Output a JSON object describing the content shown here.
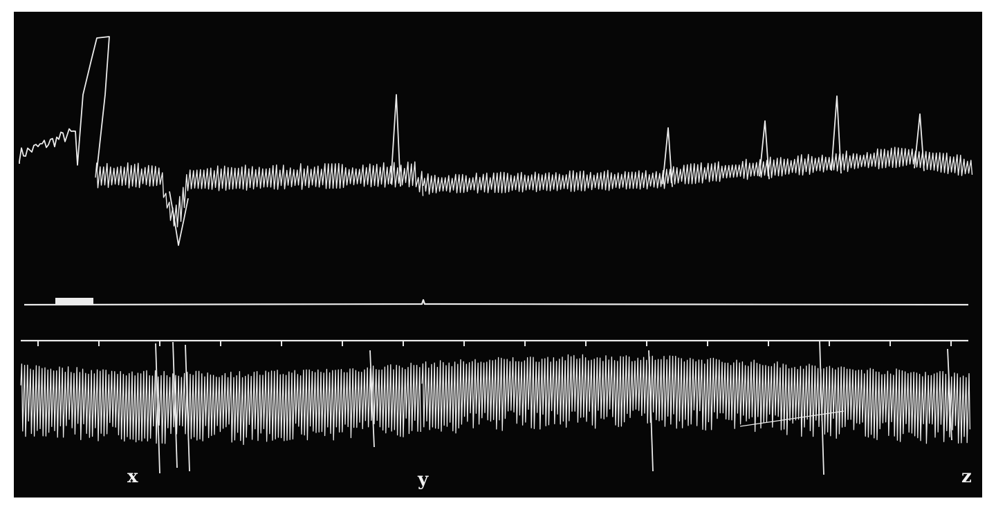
{
  "figure": {
    "markers": {
      "x": "x",
      "y": "y",
      "z": "z"
    }
  },
  "colors": {
    "background": "#060606",
    "trace": "#ececec",
    "page": "#ffffff"
  }
}
